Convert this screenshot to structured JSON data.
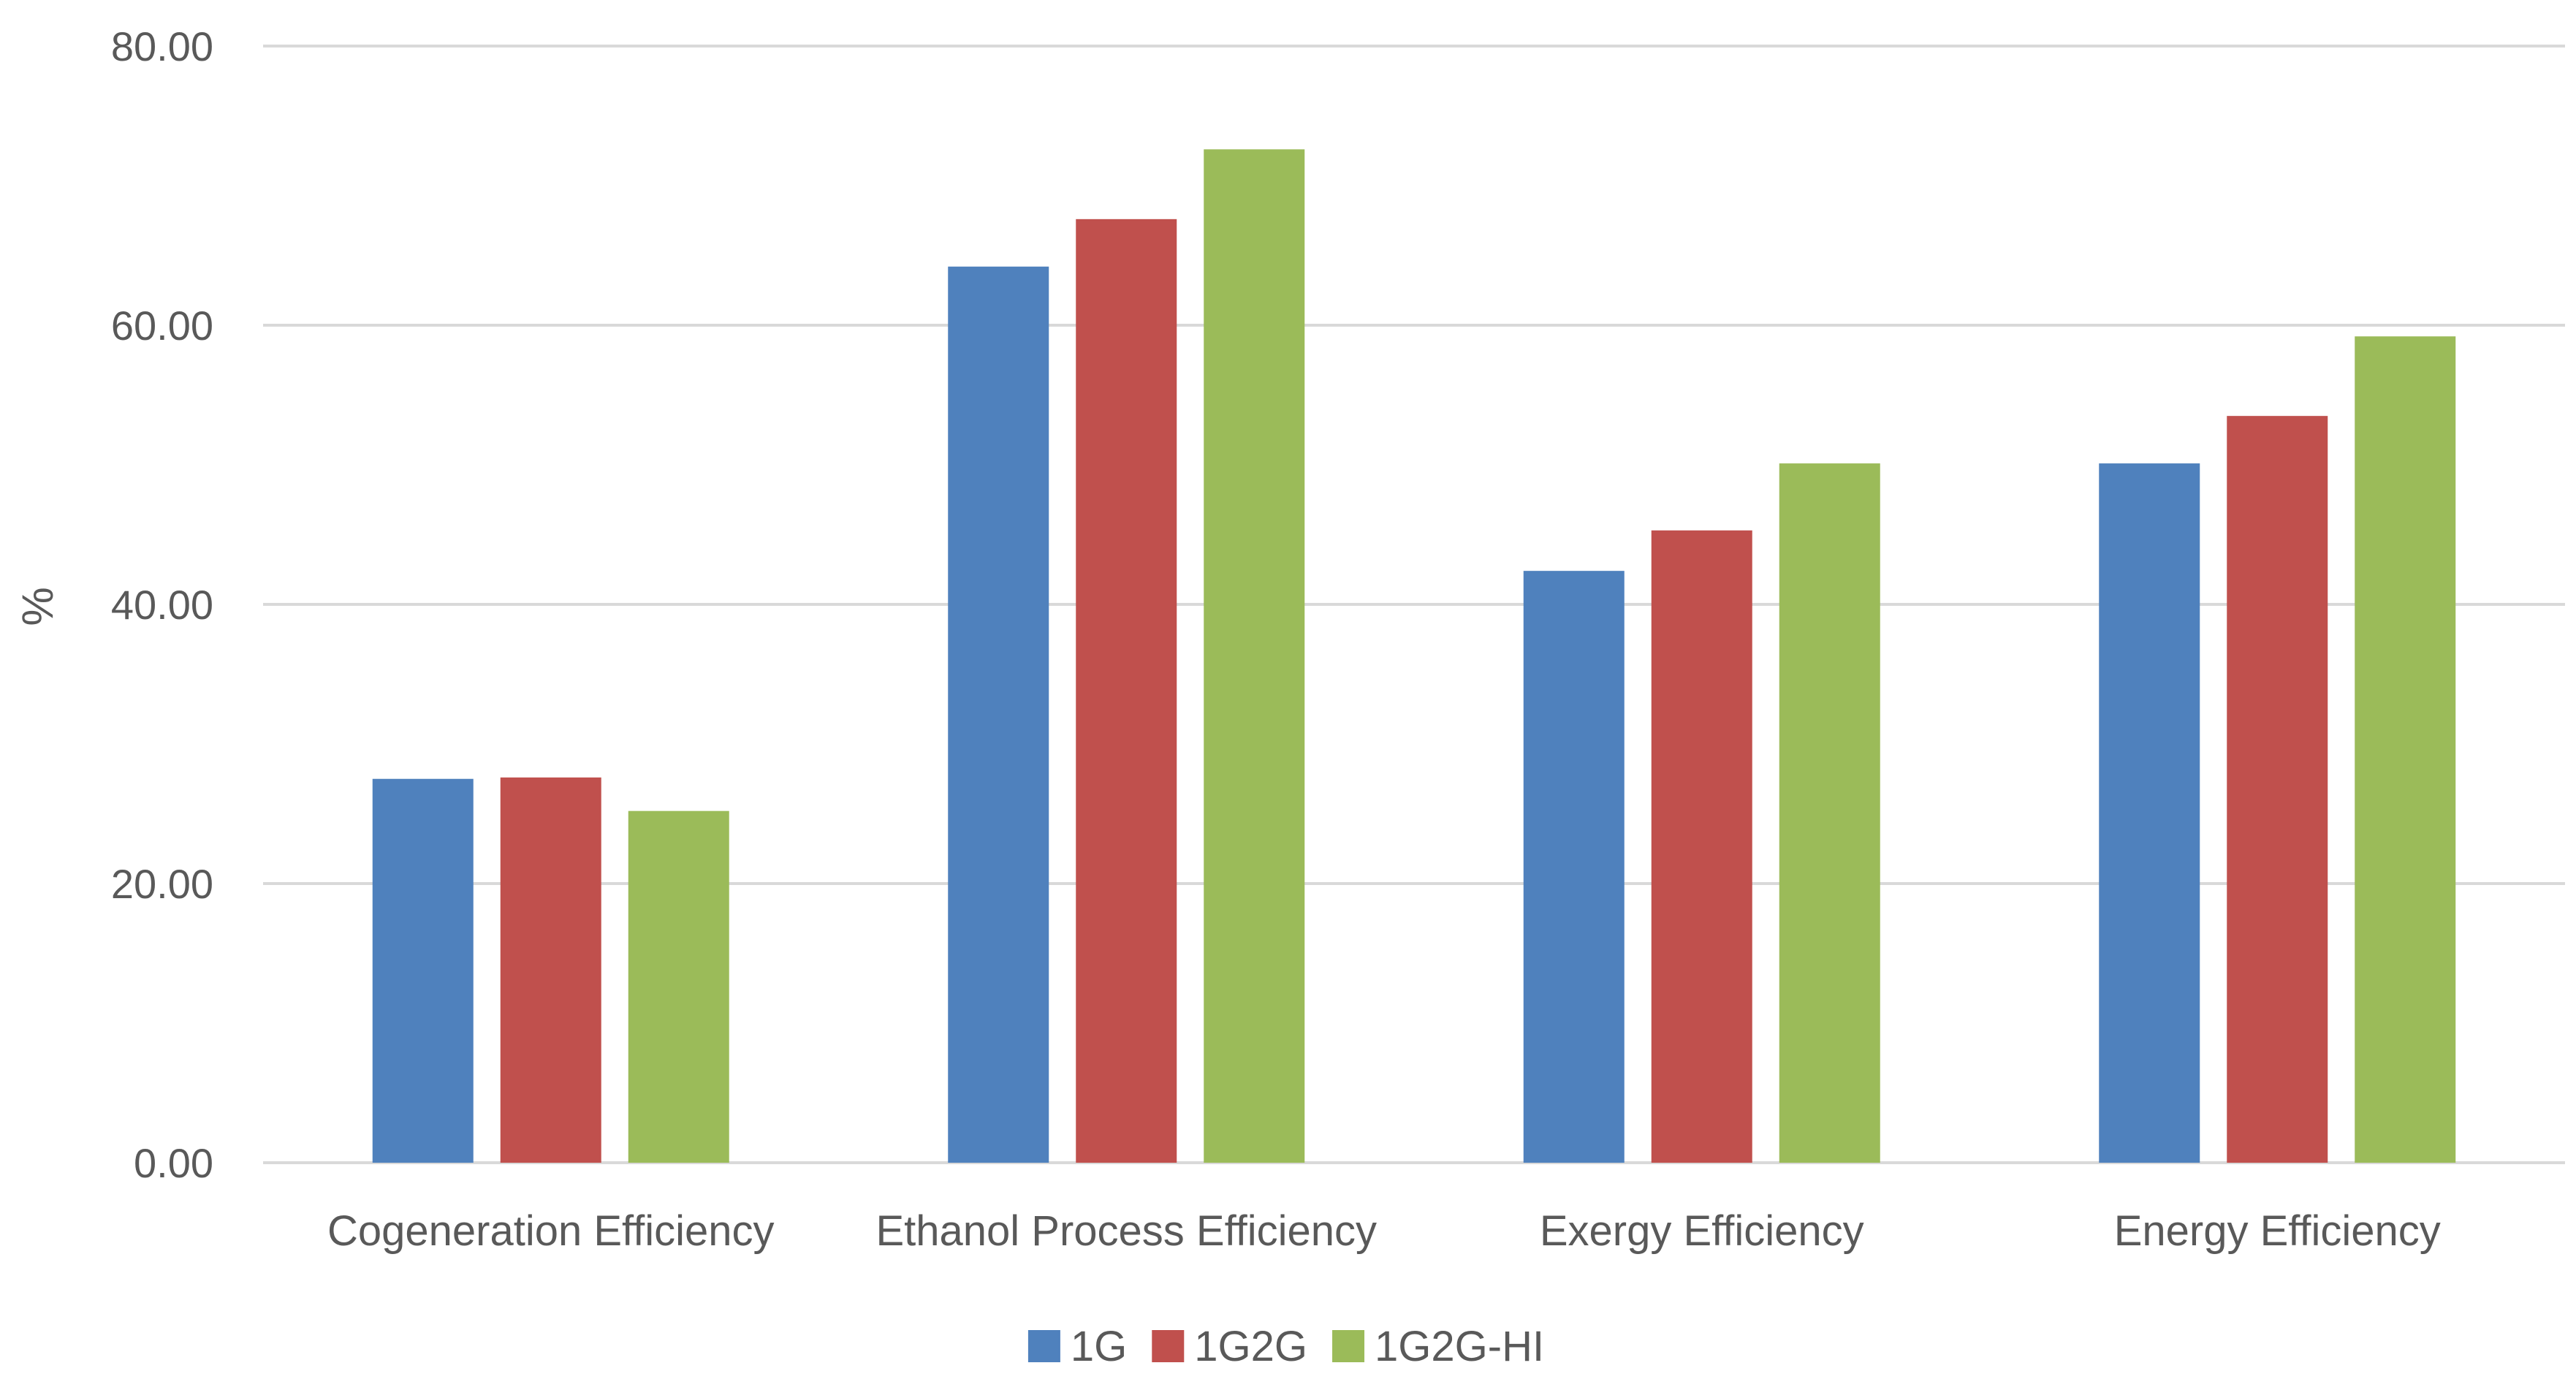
{
  "chart_data": {
    "type": "bar",
    "title": "",
    "xlabel": "",
    "ylabel": "%",
    "ylim": [
      0,
      80
    ],
    "yticks": [
      "0.00",
      "20.00",
      "40.00",
      "60.00",
      "80.00"
    ],
    "ytick_values": [
      0,
      20,
      40,
      60,
      80
    ],
    "grid": true,
    "legend_position": "bottom",
    "categories": [
      "Cogeneration Efficiency",
      "Ethanol Process Efficiency",
      "Exergy Efficiency",
      "Energy Efficiency"
    ],
    "series": [
      {
        "name": "1G",
        "color": "#4f81bd",
        "values": [
          27.5,
          64.2,
          42.4,
          50.1
        ]
      },
      {
        "name": "1G2G",
        "color": "#c0504d",
        "values": [
          27.6,
          67.6,
          45.3,
          53.5
        ]
      },
      {
        "name": "1G2G-HI",
        "color": "#9bbb59",
        "values": [
          25.2,
          72.6,
          50.1,
          59.2
        ]
      }
    ]
  }
}
